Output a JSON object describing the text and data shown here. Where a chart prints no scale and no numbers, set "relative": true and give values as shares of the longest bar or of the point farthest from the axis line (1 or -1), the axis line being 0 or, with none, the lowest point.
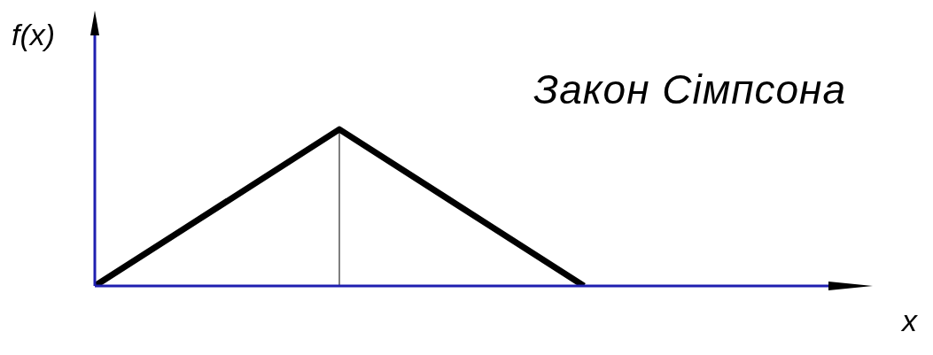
{
  "chart_data": {
    "type": "line",
    "title": "Закон Сімпсона",
    "xlabel": "x",
    "ylabel": "f(x)",
    "relative": true,
    "categories": [
      null,
      null,
      null,
      null
    ],
    "series": [
      {
        "color": "#000000",
        "values": [
          0,
          1,
          0,
          null
        ]
      }
    ],
    "grid": false,
    "legend": false,
    "marker": "none",
    "line_style": "solid"
  }
}
